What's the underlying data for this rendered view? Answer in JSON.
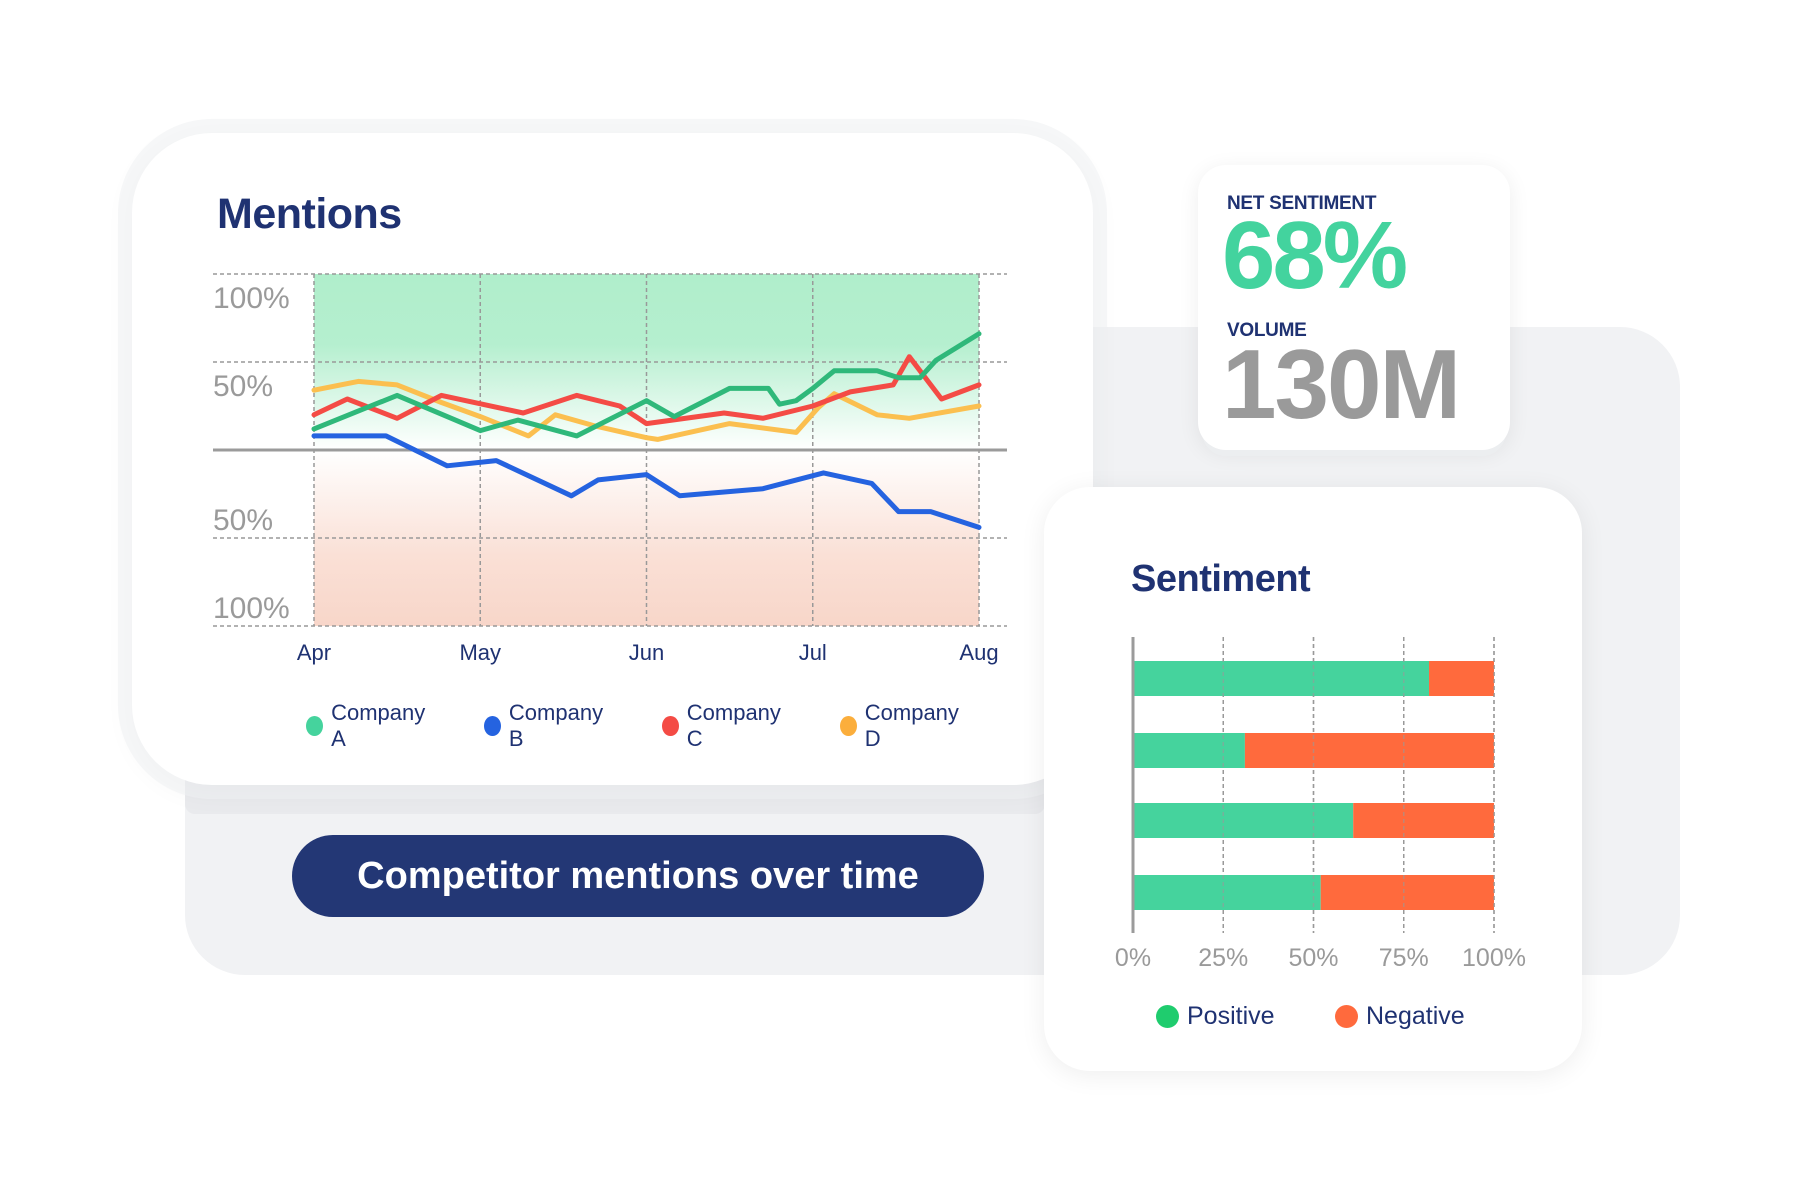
{
  "mentions_card": {
    "title": "Mentions"
  },
  "cta_button": {
    "label": "Competitor mentions over time"
  },
  "stats": {
    "net_sentiment_label": "NET SENTIMENT",
    "net_sentiment_value": "68%",
    "volume_label": "VOLUME",
    "volume_value": "130M"
  },
  "sentiment_card": {
    "title": "Sentiment"
  },
  "colors": {
    "navy": "#1f3272",
    "positive": "#45d39d",
    "negative": "#ff6a3d",
    "company_a": "#2fb87a",
    "company_b": "#2563e0",
    "company_c": "#f44b45",
    "company_d": "#fbbf4f",
    "positive_zone": "#b0eecb",
    "negative_zone": "#f9d8cc"
  },
  "chart_data": [
    {
      "type": "line",
      "title": "Mentions",
      "x_ticks": [
        "Apr",
        "May",
        "Jun",
        "Jul",
        "Aug"
      ],
      "y_ticks": [
        {
          "value": 100,
          "label": "100%"
        },
        {
          "value": 50,
          "label": "50%"
        },
        {
          "value": 0,
          "label": ""
        },
        {
          "value": -50,
          "label": "50%"
        },
        {
          "value": -100,
          "label": "100%"
        }
      ],
      "ylim": [
        -100,
        100
      ],
      "grid": true,
      "legend_position": "bottom",
      "background": "green above zero (positive), peach below zero (negative)",
      "series": [
        {
          "name": "Company A",
          "color": "#2fb87a",
          "legend_color": "#45d39d",
          "x": [
            "Apr 1",
            "Apr 16",
            "May 1",
            "May 8",
            "May 19",
            "Jun 1",
            "Jun 6",
            "Jun 16",
            "Jun 23",
            "Jun 25",
            "Jun 28",
            "Jul 1",
            "Jul 5",
            "Jul 13",
            "Jul 17",
            "Jul 21",
            "Jul 24",
            "Aug 1"
          ],
          "y": [
            12,
            31,
            11,
            17,
            8,
            28,
            19,
            35,
            35,
            26,
            28,
            35,
            45,
            45,
            41,
            41,
            51,
            66
          ]
        },
        {
          "name": "Company B",
          "color": "#2563e0",
          "legend_color": "#2563e0",
          "x": [
            "Apr 1",
            "Apr 14",
            "Apr 25",
            "May 4",
            "May 18",
            "May 23",
            "Jun 1",
            "Jun 7",
            "Jun 22",
            "Jul 3",
            "Jul 12",
            "Jul 17",
            "Jul 23",
            "Aug 1"
          ],
          "y": [
            8,
            8,
            -9,
            -6,
            -26,
            -17,
            -14,
            -26,
            -22,
            -13,
            -19,
            -35,
            -35,
            -44
          ]
        },
        {
          "name": "Company C",
          "color": "#f44b45",
          "legend_color": "#f44b45",
          "x": [
            "Apr 1",
            "Apr 7",
            "Apr 16",
            "Apr 24",
            "May 9",
            "May 19",
            "May 27",
            "Jun 1",
            "Jun 15",
            "Jun 22",
            "Jul 1",
            "Jul 8",
            "Jul 16",
            "Jul 19",
            "Jul 25",
            "Aug 1"
          ],
          "y": [
            20,
            29,
            18,
            31,
            21,
            31,
            25,
            15,
            21,
            18,
            25,
            33,
            37,
            53,
            29,
            37
          ]
        },
        {
          "name": "Company D",
          "color": "#fbbf4f",
          "legend_color": "#fbae3c",
          "x": [
            "Apr 1",
            "Apr 9",
            "Apr 16",
            "Apr 24",
            "May 1",
            "May 10",
            "May 15",
            "May 22",
            "Jun 1",
            "Jun 3",
            "Jun 16",
            "Jun 28",
            "Jul 2",
            "Jul 5",
            "Jul 13",
            "Jul 19",
            "Aug 1"
          ],
          "y": [
            34,
            39,
            37,
            27,
            19,
            8,
            20,
            14,
            7,
            6,
            15,
            10,
            24,
            32,
            20,
            18,
            25
          ]
        }
      ]
    },
    {
      "type": "bar",
      "orientation": "horizontal",
      "stacked": true,
      "title": "Sentiment",
      "x_ticks": [
        "0%",
        "25%",
        "50%",
        "75%",
        "100%"
      ],
      "xlim": [
        0,
        100
      ],
      "grid": true,
      "legend_position": "bottom",
      "series": [
        {
          "name": "Positive",
          "color": "#45d39d",
          "legend_color": "#1fcc6e",
          "values": [
            82,
            31,
            61,
            52
          ]
        },
        {
          "name": "Negative",
          "color": "#ff6a3d",
          "legend_color": "#ff6a3d",
          "values": [
            18,
            69,
            39,
            48
          ]
        }
      ]
    }
  ]
}
